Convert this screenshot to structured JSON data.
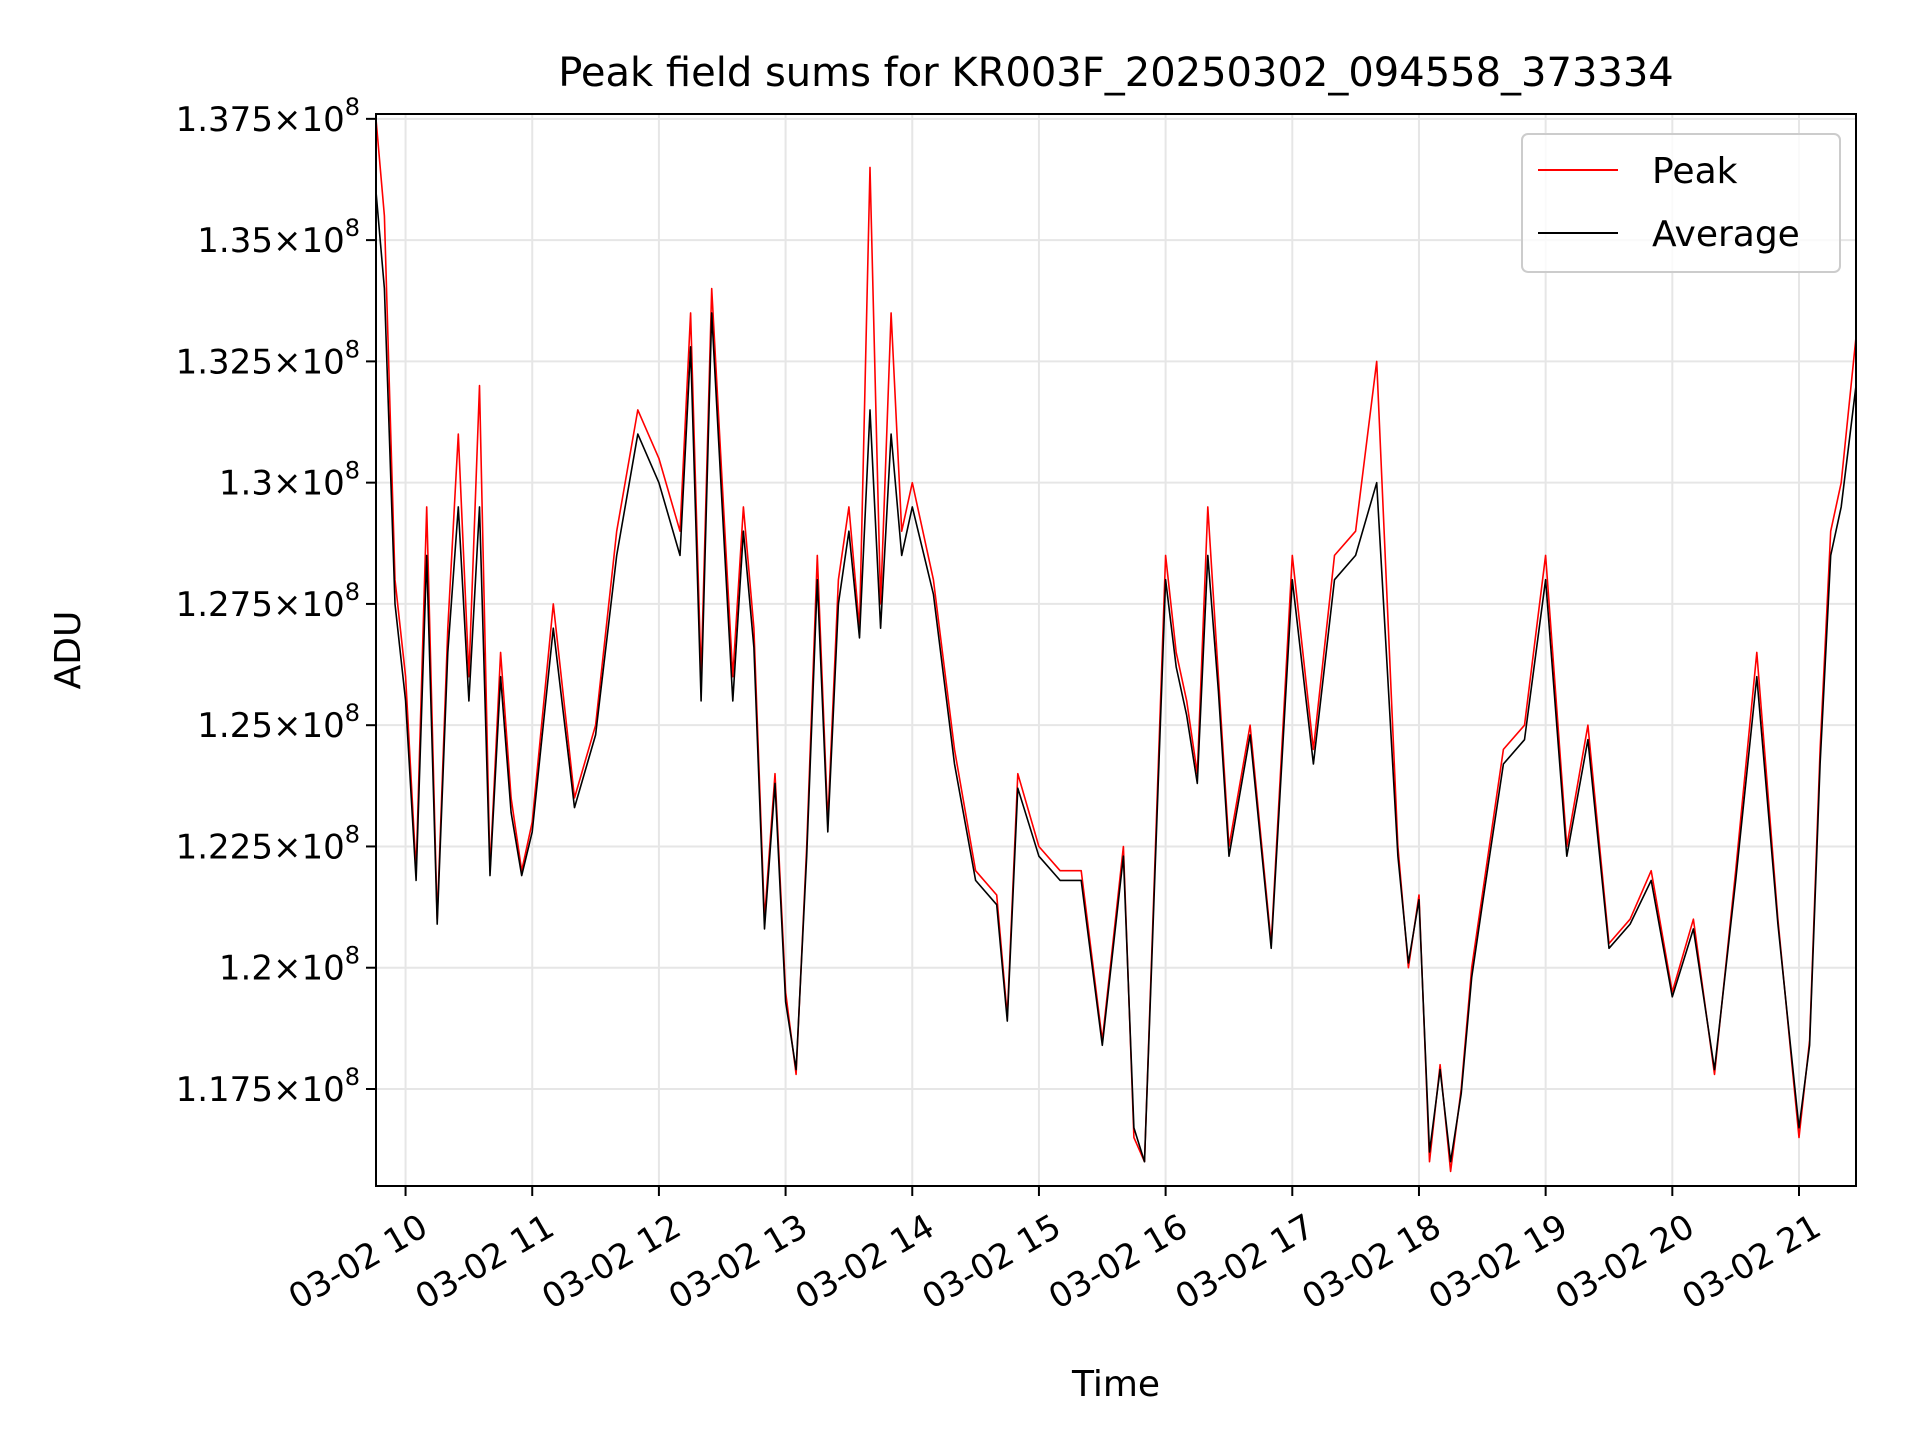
{
  "chart_data": {
    "type": "line",
    "title": "Peak field sums for KR003F_20250302_094558_373334",
    "xlabel": "Time",
    "ylabel": "ADU",
    "x_axis_kind": "datetime",
    "x_range": [
      "03-02 09:46",
      "03-02 21:27"
    ],
    "x_ticks": [
      "03-02 10",
      "03-02 11",
      "03-02 12",
      "03-02 13",
      "03-02 14",
      "03-02 15",
      "03-02 16",
      "03-02 17",
      "03-02 18",
      "03-02 19",
      "03-02 20",
      "03-02 21"
    ],
    "ylim": [
      115500000,
      137600000
    ],
    "y_ticks": [
      {
        "value": 117500000,
        "mantissa": "1.175"
      },
      {
        "value": 120000000,
        "mantissa": "1.2"
      },
      {
        "value": 122500000,
        "mantissa": "1.225"
      },
      {
        "value": 125000000,
        "mantissa": "1.25"
      },
      {
        "value": 127500000,
        "mantissa": "1.275"
      },
      {
        "value": 130000000,
        "mantissa": "1.3"
      },
      {
        "value": 132500000,
        "mantissa": "1.325"
      },
      {
        "value": 135000000,
        "mantissa": "1.35"
      },
      {
        "value": 137500000,
        "mantissa": "1.375"
      }
    ],
    "y_tick_suffix": "×10",
    "y_tick_exponent": "8",
    "grid": true,
    "legend_position": "top-right",
    "series": [
      {
        "name": "Peak",
        "color": "#ff0000",
        "x": [
          "03-02 09:46",
          "03-02 09:50",
          "03-02 09:55",
          "03-02 10:00",
          "03-02 10:05",
          "03-02 10:10",
          "03-02 10:15",
          "03-02 10:20",
          "03-02 10:25",
          "03-02 10:30",
          "03-02 10:35",
          "03-02 10:40",
          "03-02 10:45",
          "03-02 10:50",
          "03-02 10:55",
          "03-02 11:00",
          "03-02 11:10",
          "03-02 11:20",
          "03-02 11:30",
          "03-02 11:40",
          "03-02 11:50",
          "03-02 12:00",
          "03-02 12:10",
          "03-02 12:15",
          "03-02 12:20",
          "03-02 12:25",
          "03-02 12:30",
          "03-02 12:35",
          "03-02 12:40",
          "03-02 12:45",
          "03-02 12:50",
          "03-02 12:55",
          "03-02 13:00",
          "03-02 13:05",
          "03-02 13:10",
          "03-02 13:15",
          "03-02 13:20",
          "03-02 13:25",
          "03-02 13:30",
          "03-02 13:35",
          "03-02 13:40",
          "03-02 13:45",
          "03-02 13:50",
          "03-02 13:55",
          "03-02 14:00",
          "03-02 14:10",
          "03-02 14:20",
          "03-02 14:30",
          "03-02 14:40",
          "03-02 14:45",
          "03-02 14:50",
          "03-02 15:00",
          "03-02 15:10",
          "03-02 15:20",
          "03-02 15:30",
          "03-02 15:40",
          "03-02 15:45",
          "03-02 15:50",
          "03-02 16:00",
          "03-02 16:05",
          "03-02 16:10",
          "03-02 16:15",
          "03-02 16:20",
          "03-02 16:25",
          "03-02 16:30",
          "03-02 16:40",
          "03-02 16:50",
          "03-02 17:00",
          "03-02 17:10",
          "03-02 17:20",
          "03-02 17:30",
          "03-02 17:40",
          "03-02 17:50",
          "03-02 17:55",
          "03-02 18:00",
          "03-02 18:05",
          "03-02 18:10",
          "03-02 18:15",
          "03-02 18:20",
          "03-02 18:25",
          "03-02 18:30",
          "03-02 18:40",
          "03-02 18:50",
          "03-02 19:00",
          "03-02 19:10",
          "03-02 19:20",
          "03-02 19:30",
          "03-02 19:40",
          "03-02 19:50",
          "03-02 20:00",
          "03-02 20:10",
          "03-02 20:20",
          "03-02 20:30",
          "03-02 20:40",
          "03-02 20:50",
          "03-02 21:00",
          "03-02 21:05",
          "03-02 21:10",
          "03-02 21:15",
          "03-02 21:20",
          "03-02 21:27"
        ],
        "values": [
          137500000,
          135500000,
          128000000,
          126000000,
          122000000,
          129500000,
          121000000,
          127000000,
          131000000,
          126000000,
          132000000,
          122000000,
          126500000,
          123500000,
          122000000,
          123000000,
          127500000,
          123500000,
          125000000,
          129000000,
          131500000,
          130500000,
          129000000,
          133500000,
          126000000,
          134000000,
          130000000,
          126000000,
          129500000,
          127000000,
          121000000,
          124000000,
          119500000,
          117800000,
          122500000,
          128500000,
          123000000,
          128000000,
          129500000,
          127000000,
          136500000,
          127500000,
          133500000,
          129000000,
          130000000,
          128000000,
          124500000,
          122000000,
          121500000,
          119000000,
          124000000,
          122500000,
          122000000,
          122000000,
          118500000,
          122500000,
          116500000,
          116000000,
          128500000,
          126500000,
          125500000,
          124000000,
          129500000,
          126000000,
          122500000,
          125000000,
          120500000,
          128500000,
          124500000,
          128500000,
          129000000,
          132500000,
          122500000,
          120000000,
          121500000,
          116000000,
          118000000,
          115800000,
          117500000,
          120000000,
          121500000,
          124500000,
          125000000,
          128500000,
          122500000,
          125000000,
          120500000,
          121000000,
          122000000,
          119500000,
          121000000,
          117800000,
          122000000,
          126500000,
          121000000,
          116500000,
          118500000,
          124500000,
          129000000,
          130000000,
          133000000
        ]
      },
      {
        "name": "Average",
        "color": "#000000",
        "x": [
          "03-02 09:46",
          "03-02 09:50",
          "03-02 09:55",
          "03-02 10:00",
          "03-02 10:05",
          "03-02 10:10",
          "03-02 10:15",
          "03-02 10:20",
          "03-02 10:25",
          "03-02 10:30",
          "03-02 10:35",
          "03-02 10:40",
          "03-02 10:45",
          "03-02 10:50",
          "03-02 10:55",
          "03-02 11:00",
          "03-02 11:10",
          "03-02 11:20",
          "03-02 11:30",
          "03-02 11:40",
          "03-02 11:50",
          "03-02 12:00",
          "03-02 12:10",
          "03-02 12:15",
          "03-02 12:20",
          "03-02 12:25",
          "03-02 12:30",
          "03-02 12:35",
          "03-02 12:40",
          "03-02 12:45",
          "03-02 12:50",
          "03-02 12:55",
          "03-02 13:00",
          "03-02 13:05",
          "03-02 13:10",
          "03-02 13:15",
          "03-02 13:20",
          "03-02 13:25",
          "03-02 13:30",
          "03-02 13:35",
          "03-02 13:40",
          "03-02 13:45",
          "03-02 13:50",
          "03-02 13:55",
          "03-02 14:00",
          "03-02 14:10",
          "03-02 14:20",
          "03-02 14:30",
          "03-02 14:40",
          "03-02 14:45",
          "03-02 14:50",
          "03-02 15:00",
          "03-02 15:10",
          "03-02 15:20",
          "03-02 15:30",
          "03-02 15:40",
          "03-02 15:45",
          "03-02 15:50",
          "03-02 16:00",
          "03-02 16:05",
          "03-02 16:10",
          "03-02 16:15",
          "03-02 16:20",
          "03-02 16:25",
          "03-02 16:30",
          "03-02 16:40",
          "03-02 16:50",
          "03-02 17:00",
          "03-02 17:10",
          "03-02 17:20",
          "03-02 17:30",
          "03-02 17:40",
          "03-02 17:50",
          "03-02 17:55",
          "03-02 18:00",
          "03-02 18:05",
          "03-02 18:10",
          "03-02 18:15",
          "03-02 18:20",
          "03-02 18:25",
          "03-02 18:30",
          "03-02 18:40",
          "03-02 18:50",
          "03-02 19:00",
          "03-02 19:10",
          "03-02 19:20",
          "03-02 19:30",
          "03-02 19:40",
          "03-02 19:50",
          "03-02 20:00",
          "03-02 20:10",
          "03-02 20:20",
          "03-02 20:30",
          "03-02 20:40",
          "03-02 20:50",
          "03-02 21:00",
          "03-02 21:05",
          "03-02 21:10",
          "03-02 21:15",
          "03-02 21:20",
          "03-02 21:27"
        ],
        "values": [
          136000000,
          134000000,
          127500000,
          125500000,
          121800000,
          128500000,
          120900000,
          126500000,
          129500000,
          125500000,
          129500000,
          121900000,
          126000000,
          123200000,
          121900000,
          122800000,
          127000000,
          123300000,
          124800000,
          128500000,
          131000000,
          130000000,
          128500000,
          132800000,
          125500000,
          133500000,
          129500000,
          125500000,
          129000000,
          126600000,
          120800000,
          123800000,
          119300000,
          117900000,
          122300000,
          128000000,
          122800000,
          127500000,
          129000000,
          126800000,
          131500000,
          127000000,
          131000000,
          128500000,
          129500000,
          127700000,
          124200000,
          121800000,
          121300000,
          118900000,
          123700000,
          122300000,
          121800000,
          121800000,
          118400000,
          122300000,
          116700000,
          116000000,
          128000000,
          126200000,
          125200000,
          123800000,
          128500000,
          125700000,
          122300000,
          124800000,
          120400000,
          128000000,
          124200000,
          128000000,
          128500000,
          130000000,
          122300000,
          120100000,
          121400000,
          116200000,
          117900000,
          116000000,
          117400000,
          119800000,
          121300000,
          124200000,
          124700000,
          128000000,
          122300000,
          124700000,
          120400000,
          120900000,
          121800000,
          119400000,
          120800000,
          117900000,
          121800000,
          126000000,
          120900000,
          116700000,
          118400000,
          124200000,
          128500000,
          129500000,
          132000000
        ]
      }
    ]
  }
}
